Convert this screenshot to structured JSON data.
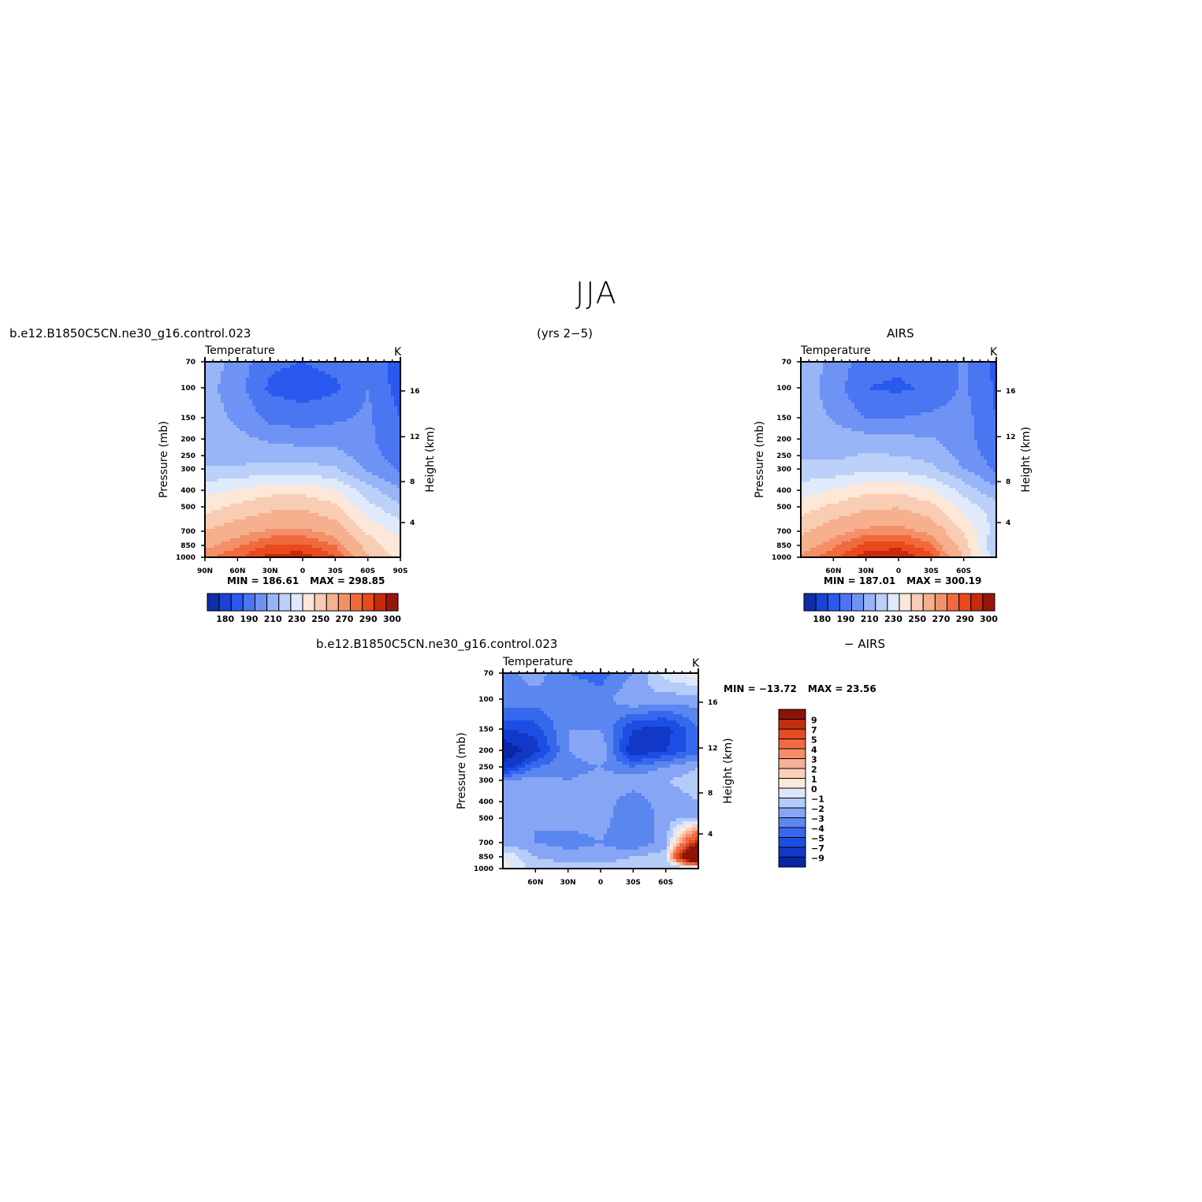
{
  "figure": {
    "title": "JJA",
    "run_left": "b.e12.B1850C5CN.ne30_g16.control.023",
    "years": "(yrs 2−5)",
    "run_right": "AIRS",
    "run_bottom": "b.e12.B1850C5CN.ne30_g16.control.023",
    "run_bottom_suffix": "− AIRS"
  },
  "colors": {
    "absolute_scale": [
      "#081d8c",
      "#0d2ea8",
      "#1a43d6",
      "#2a59f0",
      "#4a76f2",
      "#6f93f5",
      "#98b5f7",
      "#bcd1f9",
      "#dfeafb",
      "#fde7d8",
      "#f9cdb3",
      "#f6b08d",
      "#f39068",
      "#f06a3e",
      "#e84a1e",
      "#c82a0e",
      "#96170a"
    ],
    "difference_scale": [
      "#08198a",
      "#0b25a8",
      "#1238c8",
      "#1d4ee3",
      "#3568ec",
      "#5a86f0",
      "#86a6f5",
      "#b5cbf8",
      "#dbe7fb",
      "#fde9dc",
      "#fbd0b8",
      "#f7b095",
      "#f48d6a",
      "#f06a42",
      "#e44d22",
      "#c32e0f",
      "#8c1508"
    ]
  },
  "chart_data": [
    {
      "type": "heatmap",
      "panel": "model",
      "title": "Temperature",
      "units": "K",
      "ylabel": "Pressure (mb)",
      "ylabel_right": "Height (km)",
      "y_ticks": [
        "70",
        "100",
        "150",
        "200",
        "250",
        "300",
        "400",
        "500",
        "700",
        "850",
        "1000"
      ],
      "y_right_ticks": [
        "16",
        "12",
        "8",
        "4"
      ],
      "x_ticks": [
        "90N",
        "60N",
        "30N",
        "0",
        "30S",
        "60S",
        "90S"
      ],
      "min_label": "MIN =",
      "min_value": "186.61",
      "max_label": "MAX =",
      "max_value": "298.85",
      "colorbar_labels": [
        "180",
        "190",
        "210",
        "230",
        "250",
        "270",
        "290",
        "300"
      ],
      "lat": [
        90,
        60,
        30,
        0,
        -30,
        -60,
        -90
      ],
      "pressure": [
        70,
        100,
        150,
        200,
        250,
        300,
        400,
        500,
        700,
        850,
        1000
      ],
      "values": [
        [
          226,
          216,
          202,
          200,
          203,
          210,
          194
        ],
        [
          224,
          214,
          198,
          195,
          198,
          210,
          195
        ],
        [
          225,
          218,
          207,
          205,
          208,
          212,
          200
        ],
        [
          227,
          223,
          218,
          215,
          216,
          212,
          202
        ],
        [
          228,
          226,
          227,
          226,
          224,
          214,
          205
        ],
        [
          231,
          231,
          234,
          234,
          231,
          218,
          208
        ],
        [
          246,
          251,
          256,
          257,
          250,
          234,
          221
        ],
        [
          256,
          262,
          267,
          268,
          262,
          243,
          232
        ],
        [
          270,
          277,
          281,
          282,
          277,
          258,
          246
        ],
        [
          278,
          284,
          291,
          291,
          285,
          266,
          252
        ],
        [
          284,
          289,
          297,
          298,
          291,
          271,
          256
        ]
      ]
    },
    {
      "type": "heatmap",
      "panel": "observations",
      "title": "Temperature",
      "units": "K",
      "ylabel": "Pressure (mb)",
      "ylabel_right": "Height (km)",
      "y_ticks": [
        "70",
        "100",
        "150",
        "200",
        "250",
        "300",
        "400",
        "500",
        "700",
        "850",
        "1000"
      ],
      "y_right_ticks": [
        "16",
        "12",
        "8",
        "4"
      ],
      "x_ticks": [
        "60N",
        "30N",
        "0",
        "30S",
        "60S"
      ],
      "min_label": "MIN =",
      "min_value": "187.01",
      "max_label": "MAX =",
      "max_value": "300.19",
      "colorbar_labels": [
        "180",
        "190",
        "210",
        "230",
        "250",
        "270",
        "290",
        "300"
      ],
      "lat": [
        90,
        60,
        30,
        0,
        -30,
        -60,
        -90
      ],
      "pressure": [
        70,
        100,
        150,
        200,
        250,
        300,
        400,
        500,
        700,
        850,
        1000
      ],
      "values": [
        [
          227,
          217,
          205,
          203,
          206,
          211,
          198
        ],
        [
          226,
          215,
          200,
          198,
          202,
          212,
          198
        ],
        [
          226,
          219,
          210,
          210,
          212,
          214,
          200
        ],
        [
          228,
          225,
          224,
          222,
          221,
          214,
          202
        ],
        [
          229,
          228,
          231,
          230,
          227,
          216,
          205
        ],
        [
          232,
          233,
          237,
          236,
          232,
          220,
          208
        ],
        [
          245,
          251,
          257,
          258,
          251,
          236,
          222
        ],
        [
          255,
          262,
          268,
          269,
          263,
          246,
          234
        ],
        [
          268,
          277,
          282,
          283,
          278,
          259,
          236
        ],
        [
          276,
          284,
          292,
          293,
          286,
          266,
          228
        ],
        [
          282,
          288,
          298,
          300,
          292,
          270,
          235
        ]
      ]
    },
    {
      "type": "heatmap",
      "panel": "difference",
      "title": "Temperature",
      "units": "K",
      "ylabel": "Pressure (mb)",
      "ylabel_right": "Height (km)",
      "y_ticks": [
        "70",
        "100",
        "150",
        "200",
        "250",
        "300",
        "400",
        "500",
        "700",
        "850",
        "1000"
      ],
      "y_right_ticks": [
        "16",
        "12",
        "8",
        "4"
      ],
      "x_ticks": [
        "60N",
        "30N",
        "0",
        "30S",
        "60S"
      ],
      "min_label": "MIN =",
      "min_value": "−13.72",
      "max_label": "MAX =",
      "max_value": "23.56",
      "colorbar_labels": [
        "9",
        "7",
        "5",
        "4",
        "3",
        "2",
        "1",
        "0",
        "−1",
        "−2",
        "−3",
        "−4",
        "−5",
        "−7",
        "−9"
      ],
      "lat": [
        90,
        60,
        30,
        0,
        -30,
        -60,
        -90
      ],
      "pressure": [
        70,
        100,
        150,
        200,
        250,
        300,
        400,
        500,
        700,
        850,
        1000
      ],
      "values": [
        [
          -2.5,
          -1.5,
          -3.0,
          -3.5,
          -2.0,
          0.5,
          1.5
        ],
        [
          -2.0,
          -2.5,
          -2.0,
          -2.5,
          -1.0,
          -1.5,
          -1.5
        ],
        [
          -5.0,
          -4.5,
          -2.0,
          -2.0,
          -5.0,
          -5.5,
          -3.0
        ],
        [
          -9.0,
          -5.5,
          -2.0,
          -1.0,
          -6.0,
          -5.0,
          -3.5
        ],
        [
          -6.0,
          -3.0,
          -2.5,
          -2.0,
          -3.0,
          -2.0,
          -1.0
        ],
        [
          -2.0,
          -1.5,
          -2.0,
          -1.5,
          -1.5,
          -1.0,
          -0.5
        ],
        [
          -1.0,
          -1.5,
          -2.0,
          -1.5,
          -2.5,
          -1.5,
          -1.0
        ],
        [
          -1.5,
          -2.0,
          -1.5,
          -1.5,
          -3.0,
          -1.5,
          -1.0
        ],
        [
          -1.5,
          -2.0,
          -2.5,
          -2.0,
          -3.0,
          -1.5,
          10.0
        ],
        [
          1.0,
          -1.0,
          -1.5,
          -1.5,
          -1.0,
          -0.5,
          24.0
        ],
        [
          1.5,
          -0.5,
          -0.5,
          -0.5,
          -0.5,
          -1.0,
          -2.0
        ]
      ]
    }
  ]
}
